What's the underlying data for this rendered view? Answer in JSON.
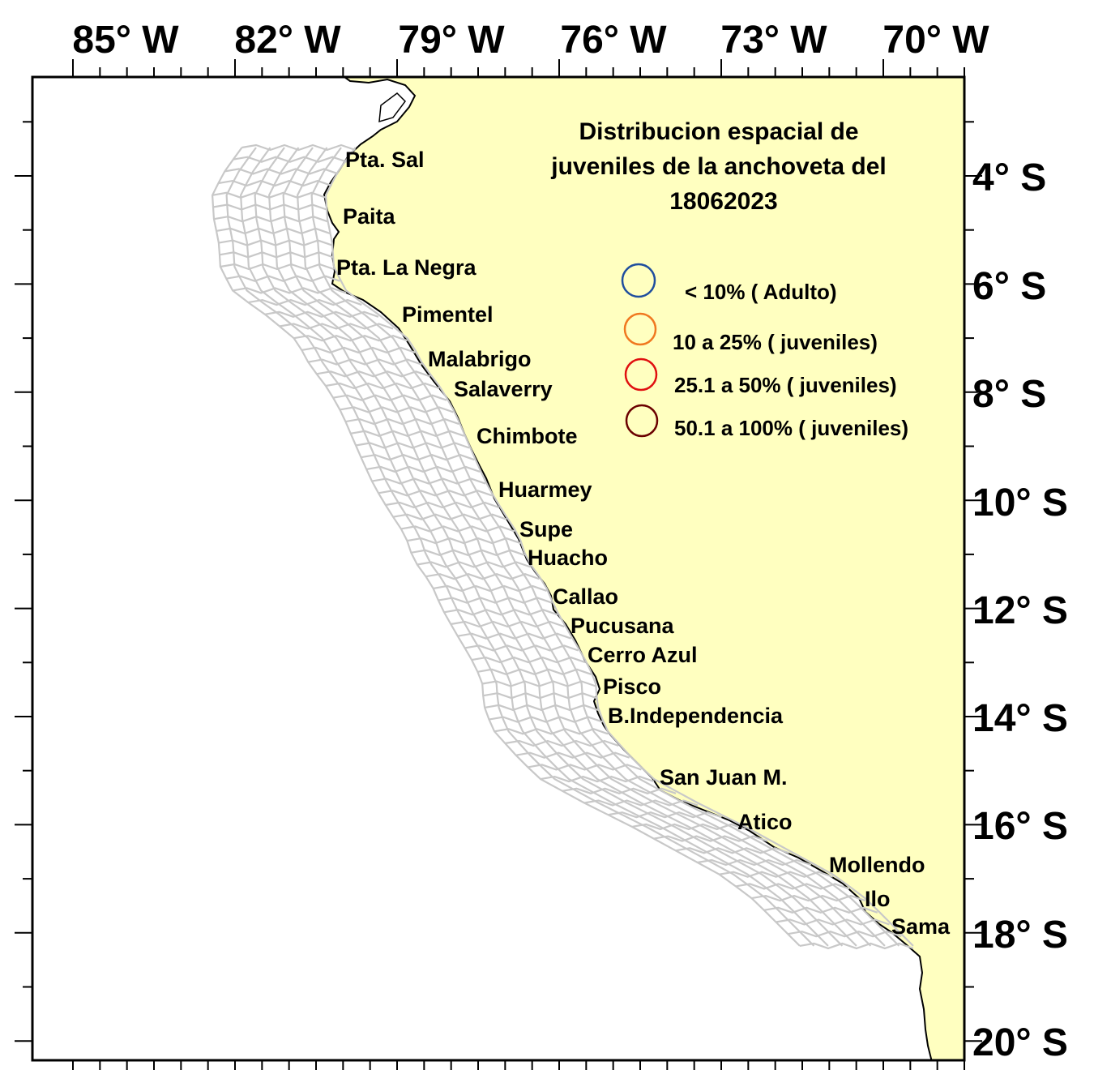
{
  "map": {
    "title_lines": [
      "Distribucion espacial de",
      "juveniles de la anchoveta del",
      "18062023"
    ],
    "longitude_labels": [
      "85° W",
      "82° W",
      "79° W",
      "76° W",
      "73° W",
      "70° W"
    ],
    "latitude_labels": [
      "4° S",
      "6° S",
      "8° S",
      "10° S",
      "12° S",
      "14° S",
      "16° S",
      "18° S",
      "20° S"
    ],
    "land_color": "#ffffc0",
    "sea_color": "#ffffff",
    "track_color": "#c8c8c8"
  },
  "legend": [
    {
      "label": "< 10% ( Adulto)",
      "color": "#1f4e9e"
    },
    {
      "label": "10 a 25% ( juveniles)",
      "color": "#f07820"
    },
    {
      "label": "25.1 a 50% ( juveniles)",
      "color": "#e01010"
    },
    {
      "label": "50.1 a 100%  ( juveniles)",
      "color": "#6a0000"
    }
  ],
  "places": [
    "Pta. Sal",
    "Paita",
    "Pta. La Negra",
    "Pimentel",
    "Malabrigo",
    "Salaverry",
    "Chimbote",
    "Huarmey",
    "Supe",
    "Huacho",
    "Callao",
    "Pucusana",
    "Cerro Azul",
    "Pisco",
    "B.Independencia",
    "San Juan M.",
    "Atico",
    "Mollendo",
    "Ilo",
    "Sama"
  ]
}
